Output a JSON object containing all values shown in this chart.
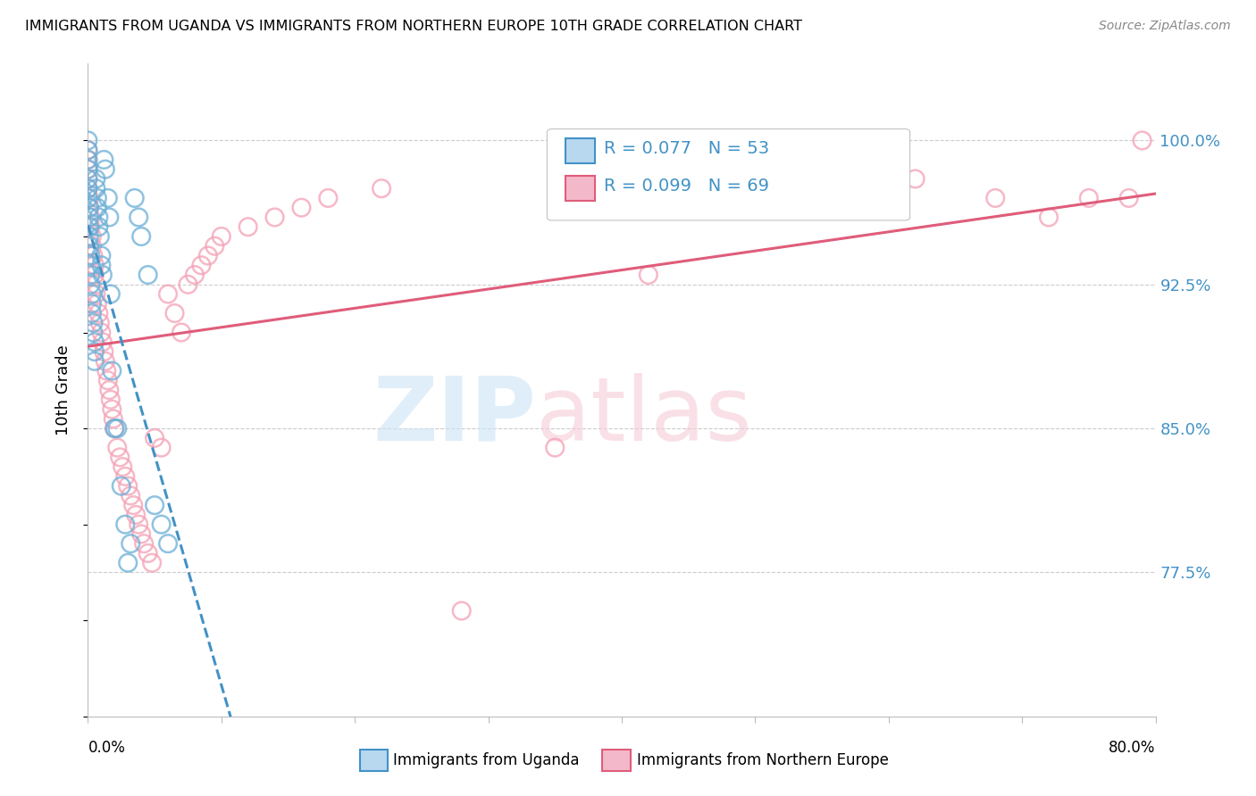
{
  "title": "IMMIGRANTS FROM UGANDA VS IMMIGRANTS FROM NORTHERN EUROPE 10TH GRADE CORRELATION CHART",
  "source": "Source: ZipAtlas.com",
  "ylabel": "10th Grade",
  "ytick_labels": [
    "77.5%",
    "85.0%",
    "92.5%",
    "100.0%"
  ],
  "ytick_values": [
    0.775,
    0.85,
    0.925,
    1.0
  ],
  "xlim": [
    0.0,
    0.8
  ],
  "ylim": [
    0.7,
    1.04
  ],
  "legend_r1": "R = 0.077",
  "legend_n1": "N = 53",
  "legend_r2": "R = 0.099",
  "legend_n2": "N = 69",
  "color_uganda": "#6aaed6",
  "color_northern": "#f4a0b5",
  "color_uganda_line": "#4292c6",
  "color_northern_line": "#e05c7a",
  "uganda_x": [
    0.0,
    0.0,
    0.0,
    0.0,
    0.0,
    0.0,
    0.001,
    0.001,
    0.001,
    0.001,
    0.001,
    0.002,
    0.002,
    0.002,
    0.002,
    0.003,
    0.003,
    0.003,
    0.004,
    0.004,
    0.005,
    0.005,
    0.005,
    0.006,
    0.006,
    0.007,
    0.007,
    0.008,
    0.008,
    0.009,
    0.01,
    0.01,
    0.011,
    0.012,
    0.013,
    0.015,
    0.016,
    0.017,
    0.018,
    0.02,
    0.022,
    0.025,
    0.028,
    0.03,
    0.032,
    0.035,
    0.038,
    0.04,
    0.045,
    0.05,
    0.055,
    0.06,
    0.0
  ],
  "uganda_y": [
    0.97,
    0.975,
    0.98,
    0.985,
    0.99,
    1.0,
    0.965,
    0.96,
    0.955,
    0.95,
    0.945,
    0.94,
    0.935,
    0.93,
    0.925,
    0.92,
    0.915,
    0.91,
    0.905,
    0.9,
    0.895,
    0.89,
    0.885,
    0.98,
    0.975,
    0.97,
    0.965,
    0.96,
    0.955,
    0.95,
    0.94,
    0.935,
    0.93,
    0.99,
    0.985,
    0.97,
    0.96,
    0.92,
    0.88,
    0.85,
    0.85,
    0.82,
    0.8,
    0.78,
    0.79,
    0.97,
    0.96,
    0.95,
    0.93,
    0.81,
    0.8,
    0.79,
    0.995
  ],
  "northern_x": [
    0.0,
    0.0,
    0.0,
    0.0,
    0.0,
    0.001,
    0.001,
    0.002,
    0.002,
    0.003,
    0.003,
    0.004,
    0.005,
    0.005,
    0.006,
    0.006,
    0.007,
    0.008,
    0.009,
    0.01,
    0.011,
    0.012,
    0.013,
    0.014,
    0.015,
    0.016,
    0.017,
    0.018,
    0.019,
    0.02,
    0.022,
    0.024,
    0.026,
    0.028,
    0.03,
    0.032,
    0.034,
    0.036,
    0.038,
    0.04,
    0.042,
    0.045,
    0.048,
    0.05,
    0.055,
    0.06,
    0.065,
    0.07,
    0.075,
    0.08,
    0.085,
    0.09,
    0.095,
    0.1,
    0.12,
    0.14,
    0.16,
    0.18,
    0.22,
    0.28,
    0.35,
    0.42,
    0.55,
    0.62,
    0.68,
    0.72,
    0.75,
    0.78,
    0.79
  ],
  "northern_y": [
    0.975,
    0.98,
    0.985,
    0.99,
    0.995,
    0.97,
    0.965,
    0.96,
    0.955,
    0.95,
    0.945,
    0.94,
    0.935,
    0.93,
    0.925,
    0.92,
    0.915,
    0.91,
    0.905,
    0.9,
    0.895,
    0.89,
    0.885,
    0.88,
    0.875,
    0.87,
    0.865,
    0.86,
    0.855,
    0.85,
    0.84,
    0.835,
    0.83,
    0.825,
    0.82,
    0.815,
    0.81,
    0.805,
    0.8,
    0.795,
    0.79,
    0.785,
    0.78,
    0.845,
    0.84,
    0.92,
    0.91,
    0.9,
    0.925,
    0.93,
    0.935,
    0.94,
    0.945,
    0.95,
    0.955,
    0.96,
    0.965,
    0.97,
    0.975,
    0.755,
    0.84,
    0.93,
    0.975,
    0.98,
    0.97,
    0.96,
    0.97,
    0.97,
    1.0
  ]
}
